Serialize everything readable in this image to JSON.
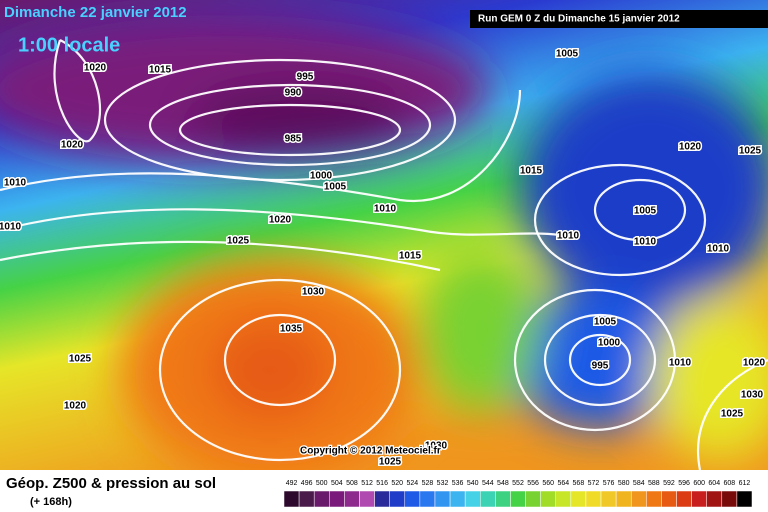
{
  "header": {
    "date": "Dimanche 22 janvier 2012",
    "time": "1:00 locale",
    "run": "Run GEM 0 Z du Dimanche 15 janvier 2012"
  },
  "copyright": "Copyright © 2012 Meteociel.fr",
  "isobar_labels": [
    1020,
    1015,
    995,
    990,
    985,
    1020,
    1010,
    1000,
    1005,
    1005,
    1015,
    1010,
    1020,
    1025,
    1010,
    1020,
    1025,
    1015,
    1010,
    1005,
    1010,
    1010,
    1030,
    1035,
    1005,
    1000,
    995,
    1010,
    1020,
    1025,
    1020,
    1030,
    1025,
    1025,
    1030
  ],
  "legend": {
    "title": "Géop. Z500 & pression au sol",
    "subtitle": "(+ 168h)",
    "levels": [
      492,
      496,
      500,
      504,
      508,
      512,
      516,
      520,
      524,
      528,
      532,
      536,
      540,
      544,
      548,
      552,
      556,
      560,
      564,
      568,
      572,
      576,
      580,
      584,
      588,
      592,
      596,
      600,
      604,
      608,
      612
    ],
    "colors": [
      "#2d0a2d",
      "#4a1a4a",
      "#6a1a6a",
      "#7a1a7a",
      "#8e2a8e",
      "#b04ab0",
      "#2a2a9a",
      "#1e3cc8",
      "#1e5ae6",
      "#2a78f0",
      "#3296f0",
      "#3cb4f0",
      "#46d2e6",
      "#3cd2b4",
      "#3cd282",
      "#46d246",
      "#78d232",
      "#a0dc28",
      "#c8e628",
      "#e6e628",
      "#f0dc28",
      "#f0c828",
      "#f0b41e",
      "#f0961e",
      "#f07814",
      "#e65a14",
      "#dc3c14",
      "#c81e1e",
      "#a01414",
      "#780a0a",
      "#000000"
    ]
  }
}
